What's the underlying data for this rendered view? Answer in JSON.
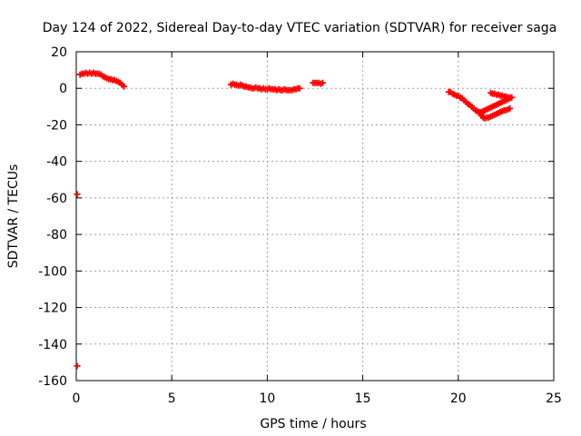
{
  "chart_data": {
    "type": "scatter",
    "title": "Day 124 of 2022, Sidereal Day-to-day VTEC variation (SDTVAR) for receiver saga",
    "xlabel": "GPS time / hours",
    "ylabel": "SDTVAR / TECUs",
    "xlim": [
      0,
      25
    ],
    "ylim": [
      -160,
      20
    ],
    "x_ticks": [
      0,
      5,
      10,
      15,
      20,
      25
    ],
    "y_ticks": [
      20,
      0,
      -20,
      -40,
      -60,
      -80,
      -100,
      -120,
      -140,
      -160
    ],
    "grid": true,
    "marker": "plus",
    "color": "#ff0000",
    "series": [
      {
        "values": [
          [
            0.05,
            -58
          ],
          [
            0.05,
            -152
          ],
          [
            0.2,
            7.5
          ],
          [
            0.3,
            8
          ],
          [
            0.4,
            8
          ],
          [
            0.5,
            8.5
          ],
          [
            0.6,
            8
          ],
          [
            0.7,
            8.5
          ],
          [
            0.8,
            8
          ],
          [
            0.9,
            8.5
          ],
          [
            1.0,
            8
          ],
          [
            1.1,
            8
          ],
          [
            1.2,
            8
          ],
          [
            1.3,
            7.5
          ],
          [
            1.4,
            6.5
          ],
          [
            1.5,
            6
          ],
          [
            1.6,
            5.5
          ],
          [
            1.7,
            5
          ],
          [
            1.8,
            5
          ],
          [
            1.9,
            4.5
          ],
          [
            2.0,
            4.5
          ],
          [
            2.1,
            4
          ],
          [
            2.2,
            3.5
          ],
          [
            2.3,
            3
          ],
          [
            2.4,
            2
          ],
          [
            2.5,
            1
          ],
          [
            8.1,
            2
          ],
          [
            8.2,
            2.5
          ],
          [
            8.3,
            2
          ],
          [
            8.4,
            2
          ],
          [
            8.5,
            1.5
          ],
          [
            8.6,
            2
          ],
          [
            8.7,
            1.5
          ],
          [
            8.8,
            1
          ],
          [
            8.9,
            1
          ],
          [
            9.0,
            0.5
          ],
          [
            9.1,
            0.5
          ],
          [
            9.2,
            0
          ],
          [
            9.3,
            0
          ],
          [
            9.4,
            0.5
          ],
          [
            9.5,
            0
          ],
          [
            9.6,
            0
          ],
          [
            9.7,
            -0.5
          ],
          [
            9.8,
            0
          ],
          [
            9.9,
            -0.5
          ],
          [
            10.0,
            -0.5
          ],
          [
            10.1,
            0
          ],
          [
            10.2,
            -0.5
          ],
          [
            10.3,
            -0.5
          ],
          [
            10.4,
            -0.5
          ],
          [
            10.5,
            -1
          ],
          [
            10.6,
            -0.5
          ],
          [
            10.7,
            -1
          ],
          [
            10.8,
            -1
          ],
          [
            10.9,
            -0.5
          ],
          [
            11.0,
            -1
          ],
          [
            11.1,
            -1
          ],
          [
            11.2,
            -1
          ],
          [
            11.3,
            -1
          ],
          [
            11.4,
            -0.5
          ],
          [
            11.5,
            -0.5
          ],
          [
            11.6,
            0
          ],
          [
            11.7,
            0
          ],
          [
            12.4,
            3
          ],
          [
            12.5,
            3
          ],
          [
            12.6,
            3
          ],
          [
            12.7,
            3
          ],
          [
            12.8,
            2.5
          ],
          [
            12.9,
            3
          ],
          [
            19.5,
            -2
          ],
          [
            19.6,
            -2
          ],
          [
            19.7,
            -3
          ],
          [
            19.8,
            -3.5
          ],
          [
            19.9,
            -4
          ],
          [
            20.0,
            -4
          ],
          [
            20.1,
            -5
          ],
          [
            20.2,
            -5.5
          ],
          [
            20.3,
            -6.5
          ],
          [
            20.4,
            -7.5
          ],
          [
            20.5,
            -8.5
          ],
          [
            20.6,
            -9
          ],
          [
            20.7,
            -10
          ],
          [
            20.8,
            -11
          ],
          [
            20.9,
            -12
          ],
          [
            21.0,
            -12.5
          ],
          [
            21.1,
            -13
          ],
          [
            21.2,
            -14
          ],
          [
            21.2,
            -15
          ],
          [
            21.3,
            -16
          ],
          [
            21.4,
            -16.5
          ],
          [
            21.5,
            -16
          ],
          [
            21.6,
            -16
          ],
          [
            21.7,
            -15.5
          ],
          [
            21.8,
            -15
          ],
          [
            21.9,
            -14.5
          ],
          [
            22.0,
            -14
          ],
          [
            22.1,
            -13.5
          ],
          [
            22.2,
            -13
          ],
          [
            22.3,
            -12.5
          ],
          [
            22.4,
            -12
          ],
          [
            22.5,
            -12
          ],
          [
            22.6,
            -11.5
          ],
          [
            22.7,
            -11
          ],
          [
            21.1,
            -13.5
          ],
          [
            21.2,
            -13
          ],
          [
            21.3,
            -12.5
          ],
          [
            21.4,
            -12
          ],
          [
            21.5,
            -11.5
          ],
          [
            21.6,
            -11
          ],
          [
            21.7,
            -10.5
          ],
          [
            21.8,
            -10
          ],
          [
            21.9,
            -9.5
          ],
          [
            22.0,
            -9
          ],
          [
            22.1,
            -8.5
          ],
          [
            22.2,
            -8
          ],
          [
            22.3,
            -7.5
          ],
          [
            22.4,
            -7
          ],
          [
            22.5,
            -6.5
          ],
          [
            22.6,
            -6
          ],
          [
            22.7,
            -5.5
          ],
          [
            22.8,
            -5
          ],
          [
            21.7,
            -2.5
          ],
          [
            21.8,
            -3
          ],
          [
            21.9,
            -3
          ],
          [
            22.0,
            -3.5
          ],
          [
            22.1,
            -3.5
          ],
          [
            22.2,
            -4
          ],
          [
            22.3,
            -4
          ],
          [
            22.4,
            -4.5
          ],
          [
            22.5,
            -4.5
          ],
          [
            22.6,
            -5
          ],
          [
            22.7,
            -5
          ]
        ]
      }
    ]
  }
}
